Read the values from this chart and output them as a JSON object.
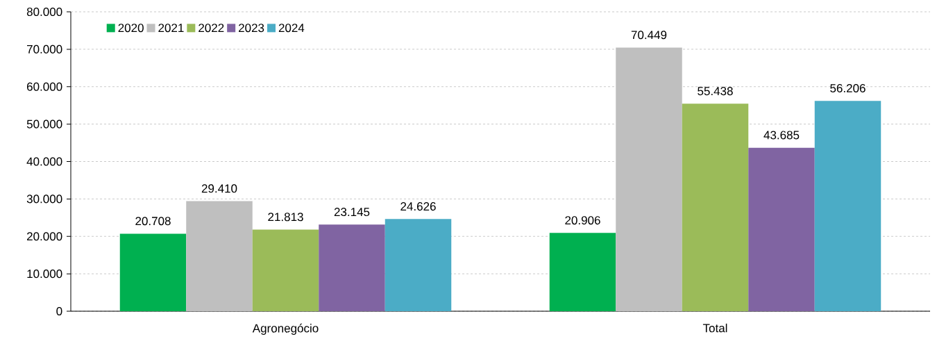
{
  "chart_data": {
    "type": "bar",
    "categories": [
      "Agronegócio",
      "Total"
    ],
    "series": [
      {
        "name": "2020",
        "color": "#00b050",
        "values": [
          20708,
          20906
        ],
        "value_labels": [
          "20.708",
          "20.906"
        ]
      },
      {
        "name": "2021",
        "color": "#bfbfbf",
        "values": [
          29410,
          70449
        ],
        "value_labels": [
          "29.410",
          "70.449"
        ]
      },
      {
        "name": "2022",
        "color": "#9bbb59",
        "values": [
          21813,
          55438
        ],
        "value_labels": [
          "21.813",
          "55.438"
        ]
      },
      {
        "name": "2023",
        "color": "#8064a2",
        "values": [
          23145,
          43685
        ],
        "value_labels": [
          "23.145",
          "43.685"
        ]
      },
      {
        "name": "2024",
        "color": "#4bacc6",
        "values": [
          24626,
          56206
        ],
        "value_labels": [
          "24.626",
          "56.206"
        ]
      }
    ],
    "ylim": [
      0,
      80000
    ],
    "yticks": [
      {
        "value": 0,
        "label": "0"
      },
      {
        "value": 10000,
        "label": "10.000"
      },
      {
        "value": 20000,
        "label": "20.000"
      },
      {
        "value": 30000,
        "label": "30.000"
      },
      {
        "value": 40000,
        "label": "40.000"
      },
      {
        "value": 50000,
        "label": "50.000"
      },
      {
        "value": 60000,
        "label": "60.000"
      },
      {
        "value": 70000,
        "label": "70.000"
      },
      {
        "value": 80000,
        "label": "80.000"
      }
    ],
    "grid": "y",
    "legend": "top left"
  }
}
